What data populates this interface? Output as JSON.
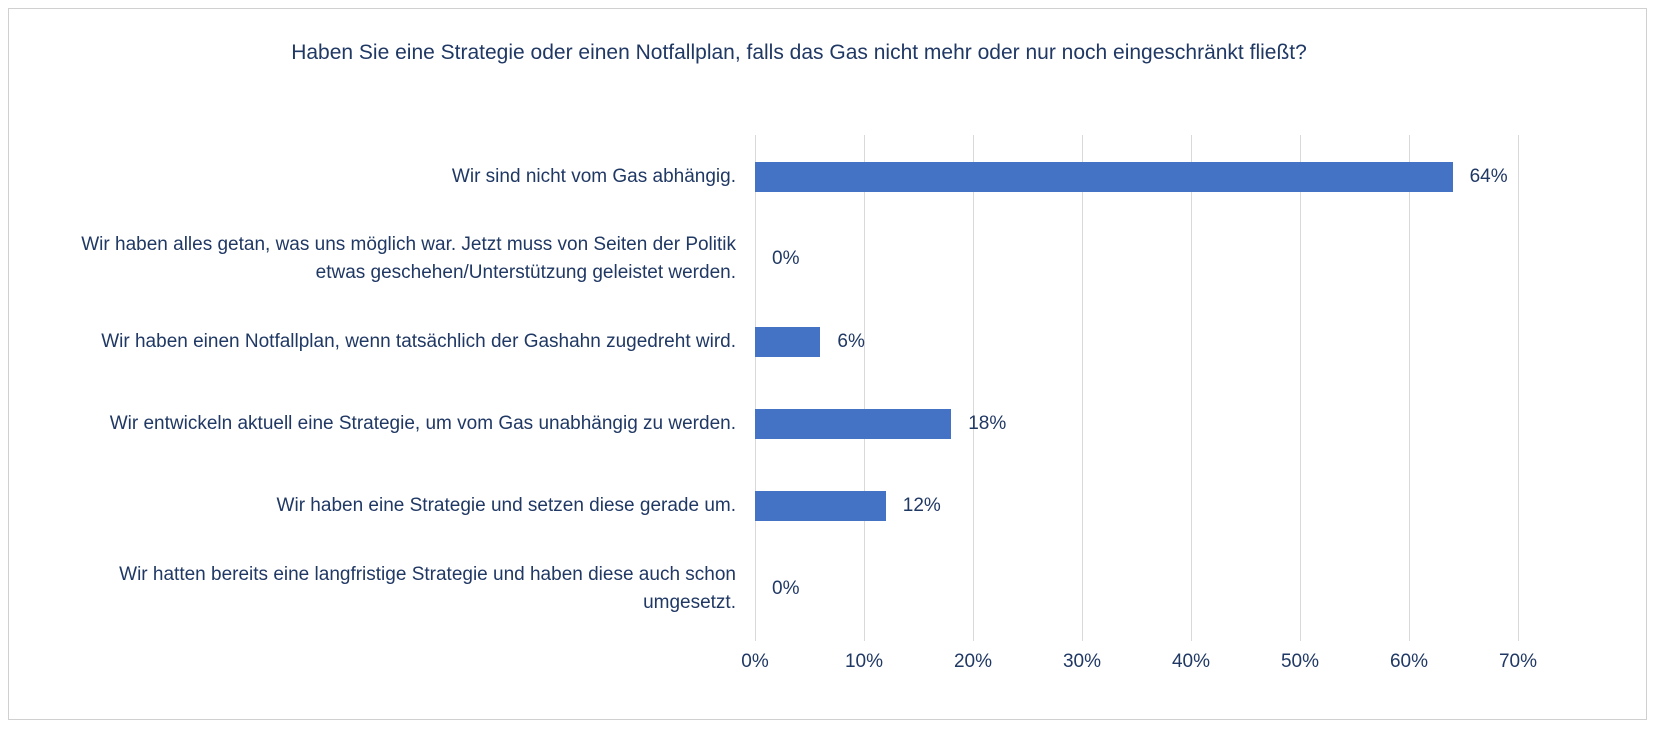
{
  "chart_data": {
    "type": "barh",
    "title": "Haben Sie eine Strategie oder einen Notfallplan, falls das Gas nicht mehr oder nur noch eingeschränkt fließt?",
    "categories": [
      "Wir sind nicht vom Gas abhängig.",
      "Wir haben alles getan, was uns möglich war. Jetzt muss von Seiten der Politik etwas geschehen/Unterstützung geleistet werden.",
      "Wir haben einen Notfallplan, wenn tatsächlich der Gashahn zugedreht wird.",
      "Wir entwickeln aktuell eine Strategie, um vom Gas unabhängig zu werden.",
      "Wir haben eine Strategie und setzen diese gerade um.",
      "Wir hatten bereits eine langfristige Strategie und haben diese auch schon umgesetzt."
    ],
    "values": [
      64,
      0,
      6,
      18,
      12,
      0
    ],
    "value_labels": [
      "64%",
      "0%",
      "6%",
      "18%",
      "12%",
      "0%"
    ],
    "color": "#4472c4",
    "xlim": [
      0,
      70
    ],
    "xticks": [
      {
        "value": 0,
        "label": "0%"
      },
      {
        "value": 10,
        "label": "10%"
      },
      {
        "value": 20,
        "label": "20%"
      },
      {
        "value": 30,
        "label": "30%"
      },
      {
        "value": 40,
        "label": "40%"
      },
      {
        "value": 50,
        "label": "50%"
      },
      {
        "value": 60,
        "label": "60%"
      },
      {
        "value": 70,
        "label": "70%"
      }
    ],
    "grid": true
  }
}
